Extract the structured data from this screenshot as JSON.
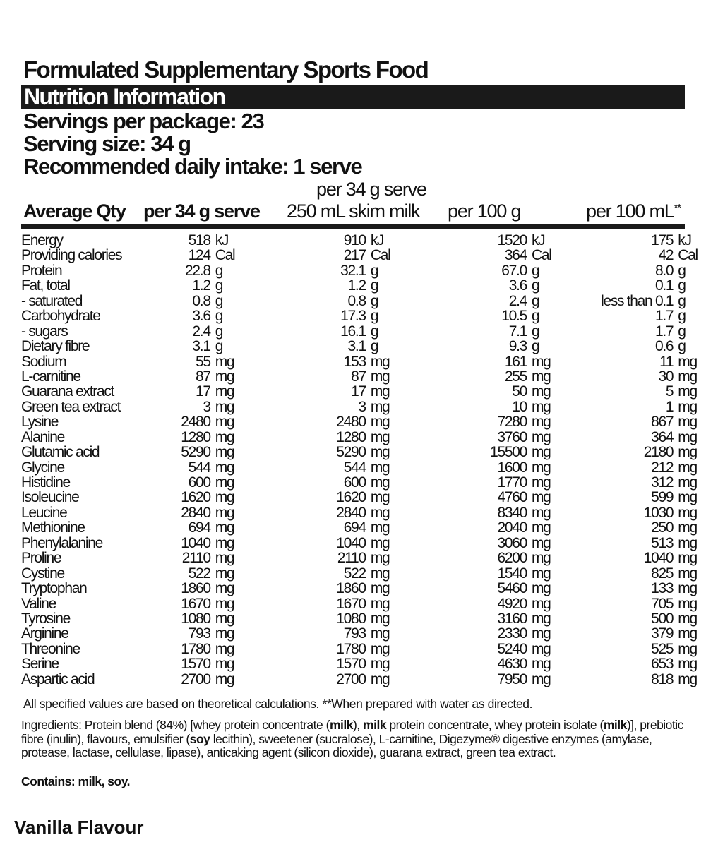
{
  "header": {
    "title": "Formulated Supplementary Sports Food",
    "section_title": "Nutrition Information",
    "servings_per_package": "Servings per package: 23",
    "serving_size": "Serving size: 34 g",
    "recommended_intake": "Recommended daily intake: 1 serve"
  },
  "columns": {
    "qty_label": "Average Qty",
    "per_serve": "per 34 g serve",
    "per_serve_milk_line1": "per 34 g serve",
    "per_serve_milk_line2": "250 mL skim milk",
    "per_100g": "per 100 g",
    "per_100ml": "per 100 mL",
    "per_100ml_mark": "**"
  },
  "rows": [
    {
      "name": "Energy",
      "v1": "518",
      "u1": "kJ",
      "v2": "910",
      "u2": "kJ",
      "v3": "1520",
      "u3": "kJ",
      "v4": "175",
      "u4": "kJ"
    },
    {
      "name": "Providing calories",
      "v1": "124",
      "u1": "Cal",
      "v2": "217",
      "u2": "Cal",
      "v3": "364",
      "u3": "Cal",
      "v4": "42",
      "u4": "Cal"
    },
    {
      "name": "Protein",
      "v1": "22.8",
      "u1": "g",
      "v2": "32.1",
      "u2": "g",
      "v3": "67.0",
      "u3": "g",
      "v4": "8.0",
      "u4": "g"
    },
    {
      "name": "Fat, total",
      "v1": "1.2",
      "u1": "g",
      "v2": "1.2",
      "u2": "g",
      "v3": "3.6",
      "u3": "g",
      "v4": "0.1",
      "u4": "g"
    },
    {
      "name": "- saturated",
      "v1": "0.8",
      "u1": "g",
      "v2": "0.8",
      "u2": "g",
      "v3": "2.4",
      "u3": "g",
      "v4": "less than 0.1",
      "u4": "g"
    },
    {
      "name": "Carbohydrate",
      "v1": "3.6",
      "u1": "g",
      "v2": "17.3",
      "u2": "g",
      "v3": "10.5",
      "u3": "g",
      "v4": "1.7",
      "u4": "g"
    },
    {
      "name": "- sugars",
      "v1": "2.4",
      "u1": "g",
      "v2": "16.1",
      "u2": "g",
      "v3": "7.1",
      "u3": "g",
      "v4": "1.7",
      "u4": "g"
    },
    {
      "name": "Dietary fibre",
      "v1": "3.1",
      "u1": "g",
      "v2": "3.1",
      "u2": "g",
      "v3": "9.3",
      "u3": "g",
      "v4": "0.6",
      "u4": "g"
    },
    {
      "name": "Sodium",
      "v1": "55",
      "u1": "mg",
      "v2": "153",
      "u2": "mg",
      "v3": "161",
      "u3": "mg",
      "v4": "11",
      "u4": "mg"
    },
    {
      "name": "L-carnitine",
      "v1": "87",
      "u1": "mg",
      "v2": "87",
      "u2": "mg",
      "v3": "255",
      "u3": "mg",
      "v4": "30",
      "u4": "mg"
    },
    {
      "name": "Guarana extract",
      "v1": "17",
      "u1": "mg",
      "v2": "17",
      "u2": "mg",
      "v3": "50",
      "u3": "mg",
      "v4": "5",
      "u4": "mg"
    },
    {
      "name": "Green tea extract",
      "v1": "3",
      "u1": "mg",
      "v2": "3",
      "u2": "mg",
      "v3": "10",
      "u3": "mg",
      "v4": "1",
      "u4": "mg"
    },
    {
      "name": "Lysine",
      "v1": "2480",
      "u1": "mg",
      "v2": "2480",
      "u2": "mg",
      "v3": "7280",
      "u3": "mg",
      "v4": "867",
      "u4": "mg"
    },
    {
      "name": "Alanine",
      "v1": "1280",
      "u1": "mg",
      "v2": "1280",
      "u2": "mg",
      "v3": "3760",
      "u3": "mg",
      "v4": "364",
      "u4": "mg"
    },
    {
      "name": "Glutamic acid",
      "v1": "5290",
      "u1": "mg",
      "v2": "5290",
      "u2": "mg",
      "v3": "15500",
      "u3": "mg",
      "v4": "2180",
      "u4": "mg"
    },
    {
      "name": "Glycine",
      "v1": "544",
      "u1": "mg",
      "v2": "544",
      "u2": "mg",
      "v3": "1600",
      "u3": "mg",
      "v4": "212",
      "u4": "mg"
    },
    {
      "name": "Histidine",
      "v1": "600",
      "u1": "mg",
      "v2": "600",
      "u2": "mg",
      "v3": "1770",
      "u3": "mg",
      "v4": "312",
      "u4": "mg"
    },
    {
      "name": "Isoleucine",
      "v1": "1620",
      "u1": "mg",
      "v2": "1620",
      "u2": "mg",
      "v3": "4760",
      "u3": "mg",
      "v4": "599",
      "u4": "mg"
    },
    {
      "name": "Leucine",
      "v1": "2840",
      "u1": "mg",
      "v2": "2840",
      "u2": "mg",
      "v3": "8340",
      "u3": "mg",
      "v4": "1030",
      "u4": "mg"
    },
    {
      "name": "Methionine",
      "v1": "694",
      "u1": "mg",
      "v2": "694",
      "u2": "mg",
      "v3": "2040",
      "u3": "mg",
      "v4": "250",
      "u4": "mg"
    },
    {
      "name": "Phenylalanine",
      "v1": "1040",
      "u1": "mg",
      "v2": "1040",
      "u2": "mg",
      "v3": "3060",
      "u3": "mg",
      "v4": "513",
      "u4": "mg"
    },
    {
      "name": "Proline",
      "v1": "2110",
      "u1": "mg",
      "v2": "2110",
      "u2": "mg",
      "v3": "6200",
      "u3": "mg",
      "v4": "1040",
      "u4": "mg"
    },
    {
      "name": "Cystine",
      "v1": "522",
      "u1": "mg",
      "v2": "522",
      "u2": "mg",
      "v3": "1540",
      "u3": "mg",
      "v4": "825",
      "u4": "mg"
    },
    {
      "name": "Tryptophan",
      "v1": "1860",
      "u1": "mg",
      "v2": "1860",
      "u2": "mg",
      "v3": "5460",
      "u3": "mg",
      "v4": "133",
      "u4": "mg"
    },
    {
      "name": "Valine",
      "v1": "1670",
      "u1": "mg",
      "v2": "1670",
      "u2": "mg",
      "v3": "4920",
      "u3": "mg",
      "v4": "705",
      "u4": "mg"
    },
    {
      "name": "Tyrosine",
      "v1": "1080",
      "u1": "mg",
      "v2": "1080",
      "u2": "mg",
      "v3": "3160",
      "u3": "mg",
      "v4": "500",
      "u4": "mg"
    },
    {
      "name": "Arginine",
      "v1": "793",
      "u1": "mg",
      "v2": "793",
      "u2": "mg",
      "v3": "2330",
      "u3": "mg",
      "v4": "379",
      "u4": "mg"
    },
    {
      "name": "Threonine",
      "v1": "1780",
      "u1": "mg",
      "v2": "1780",
      "u2": "mg",
      "v3": "5240",
      "u3": "mg",
      "v4": "525",
      "u4": "mg"
    },
    {
      "name": "Serine",
      "v1": "1570",
      "u1": "mg",
      "v2": "1570",
      "u2": "mg",
      "v3": "4630",
      "u3": "mg",
      "v4": "653",
      "u4": "mg"
    },
    {
      "name": "Aspartic acid",
      "v1": "2700",
      "u1": "mg",
      "v2": "2700",
      "u2": "mg",
      "v3": "7950",
      "u3": "mg",
      "v4": "818",
      "u4": "mg"
    }
  ],
  "footnote": "All specified values are based on theoretical calculations.  **When prepared with water as directed.",
  "ingredients": [
    {
      "text": "Ingredients: Protein blend (84%) [whey protein concentrate (",
      "bold": false
    },
    {
      "text": "milk",
      "bold": true
    },
    {
      "text": "), ",
      "bold": false
    },
    {
      "text": "milk",
      "bold": true
    },
    {
      "text": " protein concentrate, whey protein isolate (",
      "bold": false
    },
    {
      "text": "milk",
      "bold": true
    },
    {
      "text": ")], prebiotic fibre (inulin), flavours, emulsifier (",
      "bold": false
    },
    {
      "text": "soy",
      "bold": true
    },
    {
      "text": " lecithin), sweetener (sucralose), L-carnitine, Digezyme® digestive enzymes (amylase, protease, lactase, cellulase, lipase), anticaking agent (silicon dioxide), guarana extract, green tea extract.",
      "bold": false
    }
  ],
  "contains": "Contains: milk, soy.",
  "flavour": "Vanilla Flavour"
}
